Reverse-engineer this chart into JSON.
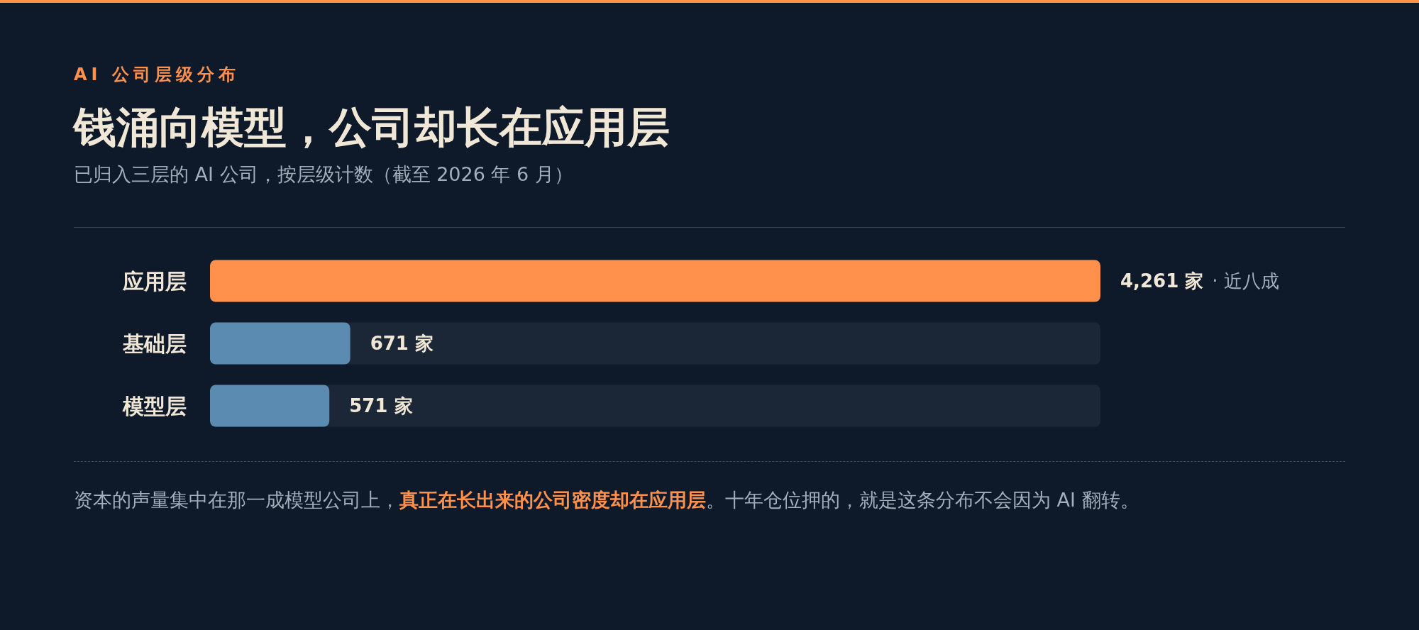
{
  "chart_data": {
    "type": "bar",
    "orientation": "horizontal",
    "title": "钱涌向模型，公司却长在应用层",
    "subtitle": "已归入三层的 AI 公司，按层级计数（截至 2026 年 6 月）",
    "categories": [
      "应用层",
      "基础层",
      "模型层"
    ],
    "values": [
      4261,
      671,
      571
    ],
    "colors": [
      "#ff914d",
      "#5b8bb1",
      "#5b8bb1"
    ],
    "value_labels": [
      "4,261 家",
      "671 家",
      "571 家"
    ],
    "xlim": [
      0,
      4261
    ],
    "tick_labels": "y",
    "annotations": [
      "AI 公司层级分布",
      "· 近八成",
      "资本的声量集中在那一成模型公司上，",
      "真正在长出来的公司密度却在应用层",
      "。十年仓位押的，就是这条分布不会因为 AI 翻转。"
    ]
  }
}
